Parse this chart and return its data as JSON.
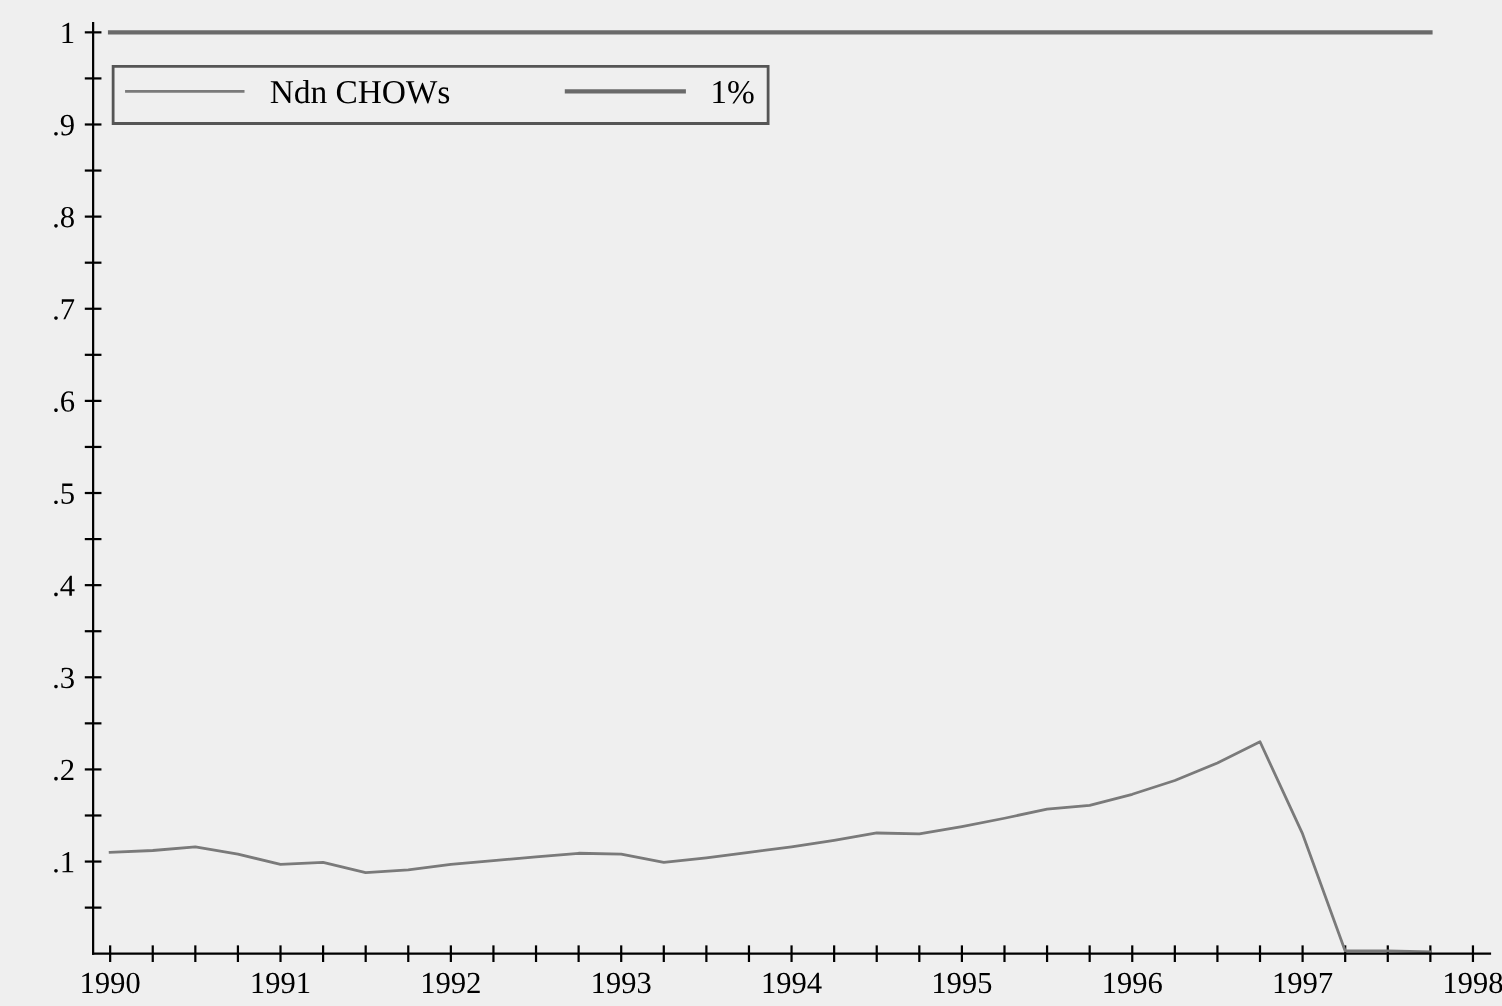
{
  "chart_data": {
    "type": "line",
    "x": [
      1990,
      1990.25,
      1990.5,
      1990.75,
      1991,
      1991.25,
      1991.5,
      1991.75,
      1992,
      1992.25,
      1992.5,
      1992.75,
      1993,
      1993.25,
      1993.5,
      1993.75,
      1994,
      1994.25,
      1994.5,
      1994.75,
      1995,
      1995.25,
      1995.5,
      1995.75,
      1996,
      1996.25,
      1996.5,
      1996.75,
      1997,
      1997.25,
      1997.5,
      1997.75
    ],
    "series": [
      {
        "name": "Ndn CHOWs",
        "color": "#7a7a7a",
        "values": [
          0.11,
          0.112,
          0.116,
          0.108,
          0.097,
          0.099,
          0.088,
          0.091,
          0.097,
          0.101,
          0.105,
          0.109,
          0.108,
          0.099,
          0.104,
          0.11,
          0.116,
          0.123,
          0.131,
          0.13,
          0.138,
          0.147,
          0.157,
          0.161,
          0.173,
          0.188,
          0.207,
          0.23,
          0.13,
          0.003,
          0.003,
          0.002
        ]
      },
      {
        "name": "1%",
        "color": "#6a6a6a",
        "values": [
          1,
          1,
          1,
          1,
          1,
          1,
          1,
          1,
          1,
          1,
          1,
          1,
          1,
          1,
          1,
          1,
          1,
          1,
          1,
          1,
          1,
          1,
          1,
          1,
          1,
          1,
          1,
          1,
          1,
          1,
          1,
          1
        ]
      }
    ],
    "xlim": [
      1989.9,
      1998.1
    ],
    "xticks": [
      1990,
      {
        "value": 1990.25,
        "label": null
      },
      {
        "value": 1990.5,
        "label": null
      },
      {
        "value": 1990.75,
        "label": null
      },
      1991,
      {
        "value": 1991.25,
        "label": null
      },
      {
        "value": 1991.5,
        "label": null
      },
      {
        "value": 1991.75,
        "label": null
      },
      1992,
      {
        "value": 1992.25,
        "label": null
      },
      {
        "value": 1992.5,
        "label": null
      },
      {
        "value": 1992.75,
        "label": null
      },
      1993,
      {
        "value": 1993.25,
        "label": null
      },
      {
        "value": 1993.5,
        "label": null
      },
      {
        "value": 1993.75,
        "label": null
      },
      1994,
      {
        "value": 1994.25,
        "label": null
      },
      {
        "value": 1994.5,
        "label": null
      },
      {
        "value": 1994.75,
        "label": null
      },
      1995,
      {
        "value": 1995.25,
        "label": null
      },
      {
        "value": 1995.5,
        "label": null
      },
      {
        "value": 1995.75,
        "label": null
      },
      1996,
      {
        "value": 1996.25,
        "label": null
      },
      {
        "value": 1996.5,
        "label": null
      },
      {
        "value": 1996.75,
        "label": null
      },
      1997,
      {
        "value": 1997.25,
        "label": null
      },
      {
        "value": 1997.5,
        "label": null
      },
      {
        "value": 1997.75,
        "label": null
      },
      1998
    ],
    "ylim": [
      0,
      1.01
    ],
    "yticks": [
      {
        "value": 0.05,
        "label": null
      },
      {
        "value": 0.1,
        "label": ".1"
      },
      {
        "value": 0.15,
        "label": null
      },
      {
        "value": 0.2,
        "label": ".2"
      },
      {
        "value": 0.25,
        "label": null
      },
      {
        "value": 0.3,
        "label": ".3"
      },
      {
        "value": 0.35,
        "label": null
      },
      {
        "value": 0.4,
        "label": ".4"
      },
      {
        "value": 0.45,
        "label": null
      },
      {
        "value": 0.5,
        "label": ".5"
      },
      {
        "value": 0.55,
        "label": null
      },
      {
        "value": 0.6,
        "label": ".6"
      },
      {
        "value": 0.65,
        "label": null
      },
      {
        "value": 0.7,
        "label": ".7"
      },
      {
        "value": 0.75,
        "label": null
      },
      {
        "value": 0.8,
        "label": ".8"
      },
      {
        "value": 0.85,
        "label": null
      },
      {
        "value": 0.9,
        "label": ".9"
      },
      {
        "value": 0.95,
        "label": null
      },
      1
    ],
    "legend": "top left",
    "grid": false,
    "line_style": "solid",
    "marker": "none"
  }
}
